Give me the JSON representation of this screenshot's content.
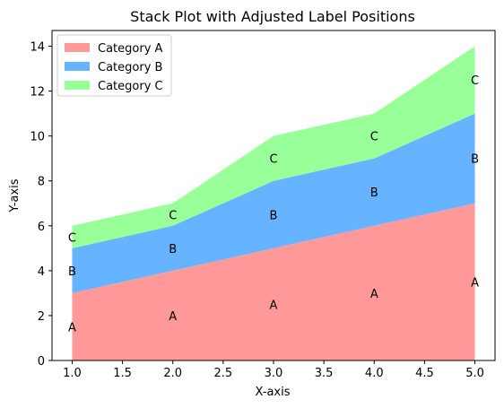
{
  "chart_data": {
    "type": "area",
    "stacked": true,
    "title": "Stack Plot with Adjusted Label Positions",
    "xlabel": "X-axis",
    "ylabel": "Y-axis",
    "x": [
      1,
      2,
      3,
      4,
      5
    ],
    "xlim": [
      0.8,
      5.2
    ],
    "ylim": [
      0,
      14.7
    ],
    "xticks": [
      "1.0",
      "1.5",
      "2.0",
      "2.5",
      "3.0",
      "3.5",
      "4.0",
      "4.5",
      "5.0"
    ],
    "yticks": [
      "0",
      "2",
      "4",
      "6",
      "8",
      "10",
      "12",
      "14"
    ],
    "grid": false,
    "legend_position": "top-left",
    "series": [
      {
        "name": "Category A",
        "values": [
          3,
          4,
          5,
          6,
          7
        ],
        "color": "#ff9999",
        "label": "A"
      },
      {
        "name": "Category B",
        "values": [
          2,
          2,
          3,
          3,
          4
        ],
        "color": "#66b3ff",
        "label": "B"
      },
      {
        "name": "Category C",
        "values": [
          1,
          1,
          2,
          2,
          3
        ],
        "color": "#99ff99",
        "label": "C"
      }
    ]
  }
}
